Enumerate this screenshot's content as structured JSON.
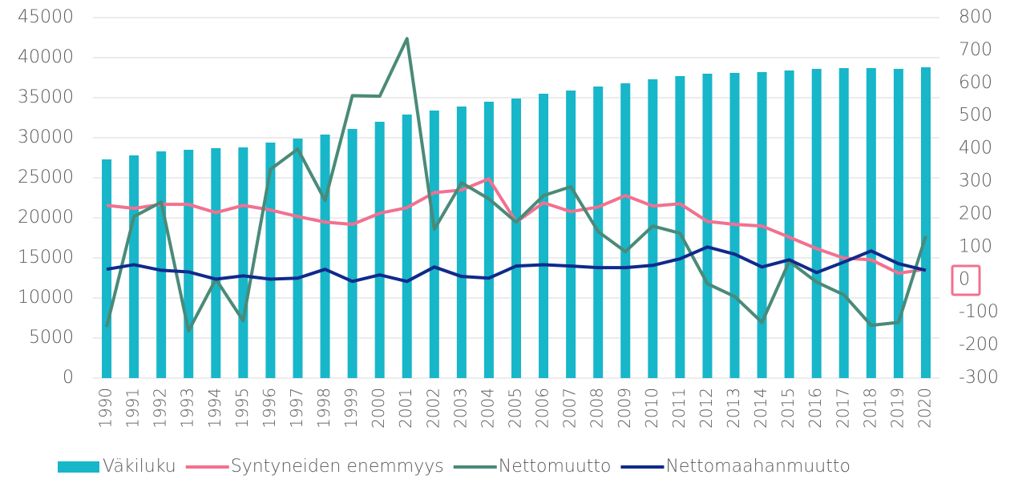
{
  "chart_data": {
    "type": "combo",
    "categories": [
      "1990",
      "1991",
      "1992",
      "1993",
      "1994",
      "1995",
      "1996",
      "1997",
      "1998",
      "1999",
      "2000",
      "2001",
      "2002",
      "2003",
      "2004",
      "2005",
      "2006",
      "2007",
      "2008",
      "2009",
      "2010",
      "2011",
      "2012",
      "2013",
      "2014",
      "2015",
      "2016",
      "2017",
      "2018",
      "2019",
      "2020"
    ],
    "series": [
      {
        "name": "Väkiluku",
        "type": "bar",
        "color": "#17b6c9",
        "values": [
          27300,
          27800,
          28300,
          28500,
          28700,
          28800,
          29400,
          29900,
          30400,
          31100,
          32000,
          32900,
          33400,
          33900,
          34500,
          34900,
          35500,
          35900,
          36400,
          36800,
          37300,
          37700,
          38000,
          38100,
          38200,
          38400,
          38600,
          38700,
          38700,
          38600,
          38800
        ]
      },
      {
        "name": "Syntyneiden enemmyys",
        "type": "line",
        "axis": "y2",
        "color": "#f27190",
        "values": [
          227,
          218,
          230,
          230,
          205,
          227,
          213,
          193,
          176,
          169,
          203,
          220,
          266,
          274,
          308,
          176,
          235,
          208,
          222,
          257,
          225,
          232,
          178,
          169,
          164,
          130,
          95,
          66,
          61,
          20,
          32
        ]
      },
      {
        "name": "Nettomuutto",
        "type": "line",
        "axis": "y2",
        "color": "#4a8a78",
        "values": [
          -144,
          193,
          237,
          -156,
          2,
          -125,
          337,
          399,
          242,
          562,
          560,
          736,
          154,
          296,
          247,
          176,
          257,
          284,
          147,
          86,
          164,
          142,
          -12,
          -51,
          -130,
          56,
          -7,
          -46,
          -139,
          -130,
          134
        ]
      },
      {
        "name": "Nettomaahanmuutto",
        "type": "line",
        "axis": "y2",
        "color": "#0f2a8c",
        "values": [
          32,
          46,
          29,
          24,
          2,
          12,
          2,
          5,
          32,
          -5,
          15,
          -5,
          39,
          10,
          5,
          42,
          46,
          42,
          37,
          37,
          44,
          64,
          100,
          78,
          39,
          61,
          22,
          54,
          88,
          49,
          29
        ]
      }
    ],
    "ylim": [
      0,
      45000
    ],
    "yticks": [
      0,
      5000,
      10000,
      15000,
      20000,
      25000,
      30000,
      35000,
      40000,
      45000
    ],
    "y2lim": [
      -300,
      800
    ],
    "y2ticks": [
      -300,
      -200,
      -100,
      0,
      100,
      200,
      300,
      400,
      500,
      600,
      700,
      800
    ],
    "grid": true,
    "legend": "bottom"
  }
}
